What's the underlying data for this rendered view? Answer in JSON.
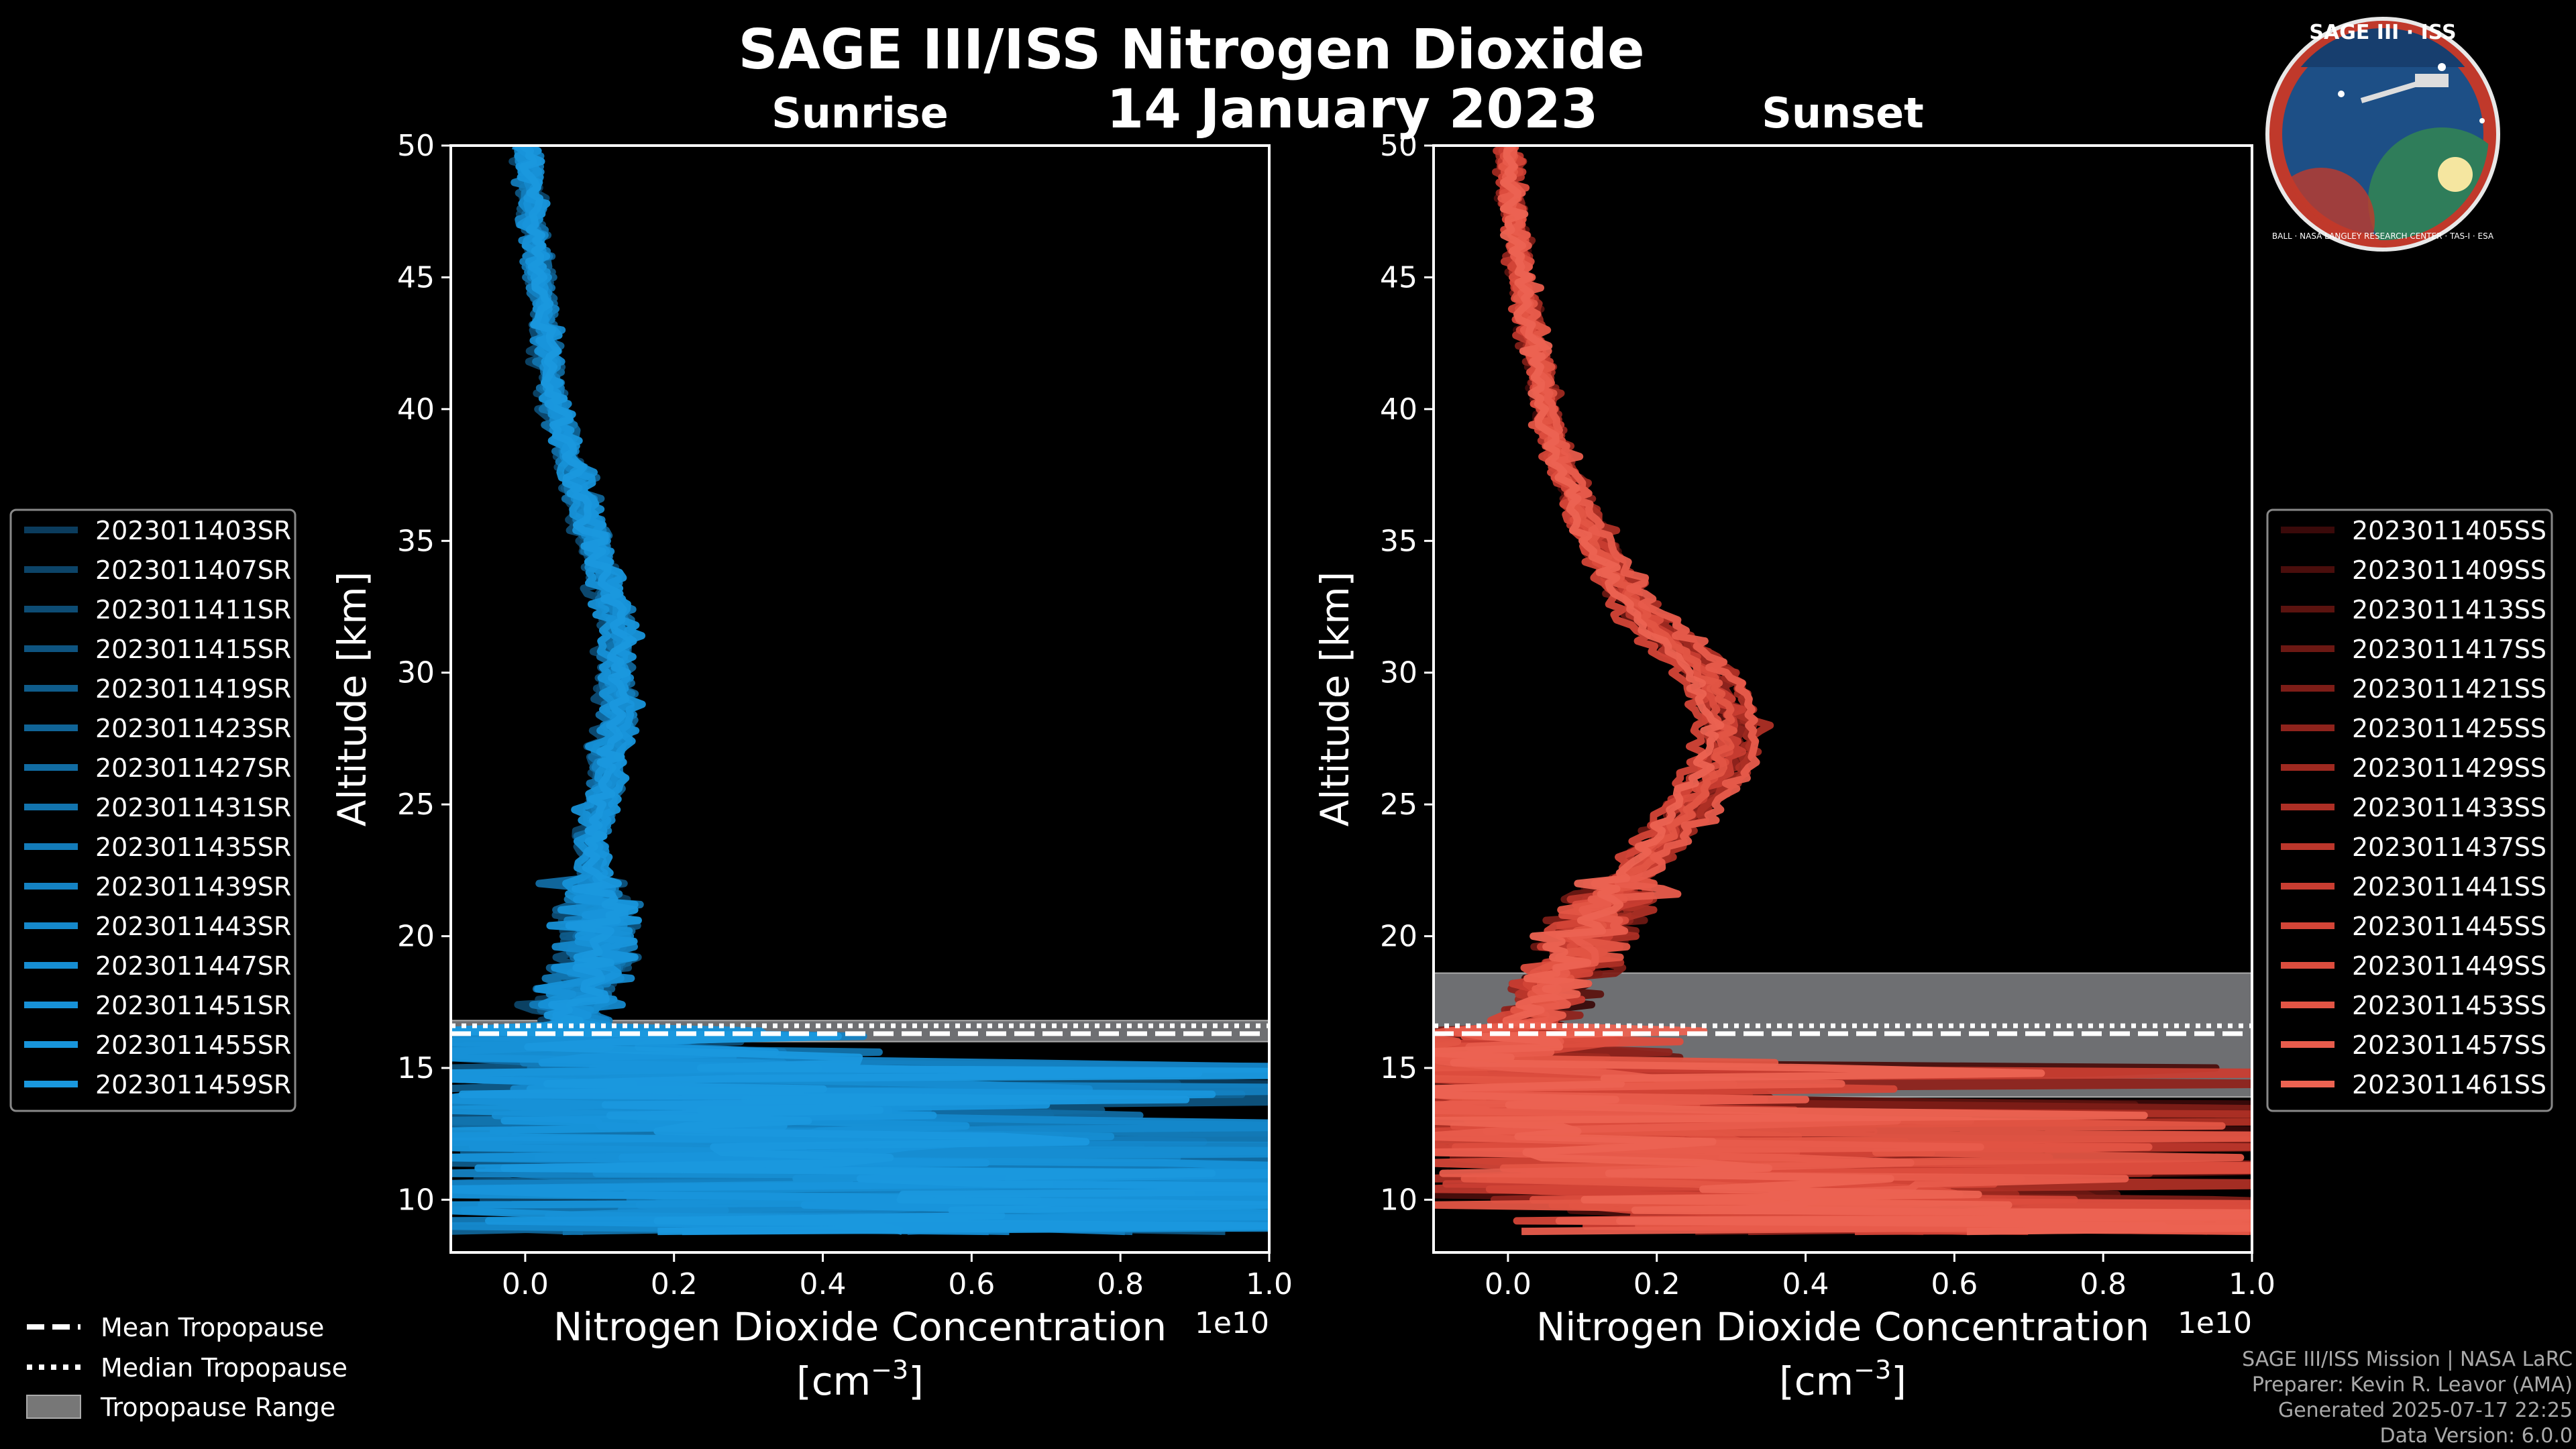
{
  "figure": {
    "title": "SAGE III/ISS Nitrogen Dioxide",
    "date": "14 January 2023",
    "logo_text": "SAGE III · ISS",
    "logo_subtext": "BALL · NASA LANGLEY RESEARCH CENTER · TAS-I · ESA"
  },
  "credits": [
    "SAGE III/ISS Mission | NASA LaRC",
    "Preparer: Kevin R. Leavor (AMA)",
    "Generated 2025-07-17 22:25",
    "Data Version: 6.0.0"
  ],
  "tropopause_legend": {
    "mean": "Mean Tropopause",
    "median": "Median Tropopause",
    "range": "Tropopause Range"
  },
  "chart_data": [
    {
      "type": "line",
      "title": "Sunrise",
      "xlabel": "Nitrogen Dioxide Concentration",
      "xlabel_unit": "[cm",
      "xlabel_exp": "−3",
      "xlabel_unit_close": "]",
      "x_scale_label": "1e10",
      "ylabel": "Altitude [km]",
      "xlim": [
        -0.1,
        1.0
      ],
      "ylim": [
        8,
        50
      ],
      "xticks": [
        "0.0",
        "0.2",
        "0.4",
        "0.6",
        "0.8",
        "1.0"
      ],
      "xtick_values": [
        0.0,
        0.2,
        0.4,
        0.6,
        0.8,
        1.0
      ],
      "yticks": [
        "10",
        "15",
        "20",
        "25",
        "30",
        "35",
        "40",
        "45",
        "50"
      ],
      "ytick_values": [
        10,
        15,
        20,
        25,
        30,
        35,
        40,
        45,
        50
      ],
      "grid": false,
      "legend_placement": "left",
      "tropopause": {
        "mean": 16.3,
        "median": 16.6,
        "range": [
          16.0,
          16.8
        ]
      },
      "series_profile": {
        "altitude_km": [
          9,
          10,
          11,
          12,
          13,
          14,
          15,
          16,
          17,
          18,
          19,
          20,
          21,
          22,
          23,
          24,
          25,
          26,
          27,
          28,
          29,
          30,
          31,
          32,
          33,
          34,
          35,
          36,
          37,
          38,
          39,
          40,
          41,
          42,
          43,
          44,
          45,
          46,
          47,
          48,
          49,
          50
        ],
        "no2_1e10_cm3": [
          0.45,
          0.4,
          0.35,
          0.3,
          0.25,
          0.22,
          0.15,
          0.08,
          0.06,
          0.07,
          0.09,
          0.1,
          0.1,
          0.09,
          0.09,
          0.09,
          0.1,
          0.11,
          0.11,
          0.12,
          0.12,
          0.12,
          0.12,
          0.12,
          0.11,
          0.1,
          0.09,
          0.08,
          0.07,
          0.06,
          0.05,
          0.04,
          0.035,
          0.03,
          0.025,
          0.02,
          0.02,
          0.015,
          0.01,
          0.01,
          0.005,
          0.0
        ]
      },
      "series": [
        {
          "name": "2023011403SR",
          "color": "#0b3c5d"
        },
        {
          "name": "2023011407SR",
          "color": "#0c4468"
        },
        {
          "name": "2023011411SR",
          "color": "#0d4c74"
        },
        {
          "name": "2023011415SR",
          "color": "#0e5480"
        },
        {
          "name": "2023011419SR",
          "color": "#0f5c8b"
        },
        {
          "name": "2023011423SR",
          "color": "#106497"
        },
        {
          "name": "2023011427SR",
          "color": "#116ca3"
        },
        {
          "name": "2023011431SR",
          "color": "#1274ae"
        },
        {
          "name": "2023011435SR",
          "color": "#137bb9"
        },
        {
          "name": "2023011439SR",
          "color": "#1482c3"
        },
        {
          "name": "2023011443SR",
          "color": "#1588cb"
        },
        {
          "name": "2023011447SR",
          "color": "#168dd2"
        },
        {
          "name": "2023011451SR",
          "color": "#1791d7"
        },
        {
          "name": "2023011455SR",
          "color": "#1895db"
        },
        {
          "name": "2023011459SR",
          "color": "#1a98de"
        }
      ]
    },
    {
      "type": "line",
      "title": "Sunset",
      "xlabel": "Nitrogen Dioxide Concentration",
      "xlabel_unit": "[cm",
      "xlabel_exp": "−3",
      "xlabel_unit_close": "]",
      "x_scale_label": "1e10",
      "ylabel": "Altitude [km]",
      "xlim": [
        -0.1,
        1.0
      ],
      "ylim": [
        8,
        50
      ],
      "xticks": [
        "0.0",
        "0.2",
        "0.4",
        "0.6",
        "0.8",
        "1.0"
      ],
      "xtick_values": [
        0.0,
        0.2,
        0.4,
        0.6,
        0.8,
        1.0
      ],
      "yticks": [
        "10",
        "15",
        "20",
        "25",
        "30",
        "35",
        "40",
        "45",
        "50"
      ],
      "ytick_values": [
        10,
        15,
        20,
        25,
        30,
        35,
        40,
        45,
        50
      ],
      "grid": false,
      "legend_placement": "right",
      "tropopause": {
        "mean": 16.3,
        "median": 16.6,
        "range": [
          13.9,
          18.6
        ]
      },
      "series_profile": {
        "altitude_km": [
          9,
          10,
          11,
          12,
          13,
          14,
          15,
          16,
          17,
          18,
          19,
          20,
          21,
          22,
          23,
          24,
          25,
          26,
          27,
          28,
          29,
          30,
          31,
          32,
          33,
          34,
          35,
          36,
          37,
          38,
          39,
          40,
          41,
          42,
          43,
          44,
          45,
          46,
          47,
          48,
          49,
          50
        ],
        "no2_1e10_cm3": [
          0.55,
          0.35,
          0.25,
          0.15,
          0.08,
          0.03,
          0.02,
          0.03,
          0.04,
          0.06,
          0.09,
          0.11,
          0.13,
          0.16,
          0.19,
          0.22,
          0.25,
          0.28,
          0.3,
          0.3,
          0.29,
          0.27,
          0.23,
          0.19,
          0.16,
          0.14,
          0.12,
          0.1,
          0.09,
          0.07,
          0.06,
          0.05,
          0.045,
          0.04,
          0.03,
          0.025,
          0.02,
          0.015,
          0.01,
          0.005,
          0.0,
          0.0
        ]
      },
      "series": [
        {
          "name": "2023011405SS",
          "color": "#3a0a0a"
        },
        {
          "name": "2023011409SS",
          "color": "#4a0e0c"
        },
        {
          "name": "2023011413SS",
          "color": "#5b130f"
        },
        {
          "name": "2023011417SS",
          "color": "#6c1813"
        },
        {
          "name": "2023011421SS",
          "color": "#7d1d17"
        },
        {
          "name": "2023011425SS",
          "color": "#8e231c"
        },
        {
          "name": "2023011429SS",
          "color": "#9e2920"
        },
        {
          "name": "2023011433SS",
          "color": "#ad2f25"
        },
        {
          "name": "2023011437SS",
          "color": "#bb362b"
        },
        {
          "name": "2023011441SS",
          "color": "#c83d31"
        },
        {
          "name": "2023011445SS",
          "color": "#d34537"
        },
        {
          "name": "2023011449SS",
          "color": "#dc4d3e"
        },
        {
          "name": "2023011453SS",
          "color": "#e35545"
        },
        {
          "name": "2023011457SS",
          "color": "#e85c4c"
        },
        {
          "name": "2023011461SS",
          "color": "#ec6352"
        }
      ]
    }
  ]
}
